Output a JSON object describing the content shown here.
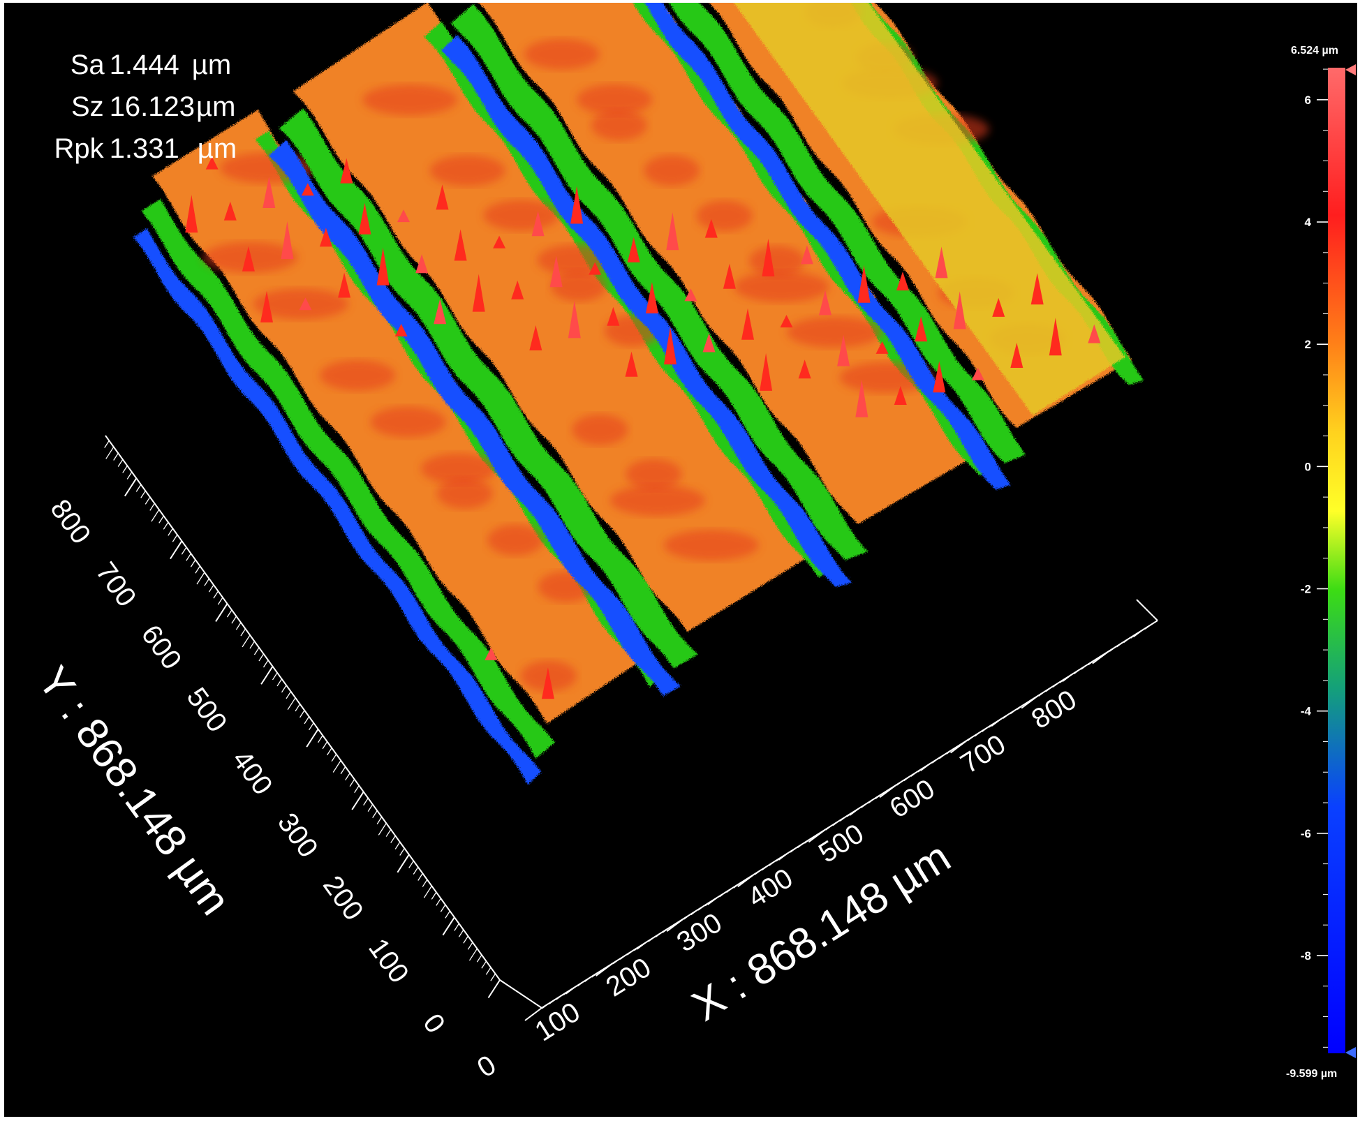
{
  "parameters": [
    {
      "name": "Sa",
      "value": "1.444",
      "unit": "µm"
    },
    {
      "name": "Sz",
      "value": "16.123",
      "unit": "µm"
    },
    {
      "name": "Rpk",
      "value": "1.331",
      "unit": "µm"
    }
  ],
  "colorbar": {
    "max_label": "6.524 µm",
    "min_label": "-9.599 µm",
    "ticks": [
      "6",
      "4",
      "2",
      "0",
      "-2",
      "-4",
      "-6",
      "-8"
    ],
    "tick_values": [
      6,
      4,
      2,
      0,
      -2,
      -4,
      -6,
      -8
    ],
    "max_value": 6.524,
    "min_value": -9.599,
    "gradient_colors": [
      "#ff6060",
      "#ff1414",
      "#ff7a14",
      "#ffd21e",
      "#ffff28",
      "#3cdc14",
      "#14a078",
      "#0a3cff",
      "#0000ff"
    ]
  },
  "x_axis": {
    "title": "X : 868.148 µm",
    "ticks": [
      "0",
      "100",
      "200",
      "300",
      "400",
      "500",
      "600",
      "700",
      "800"
    ]
  },
  "y_axis": {
    "title": "Y : 868.148 µm",
    "ticks": [
      "0",
      "100",
      "200",
      "300",
      "400",
      "500",
      "600",
      "700",
      "800"
    ]
  },
  "surface": {
    "extent_um": 868.148,
    "colors": {
      "blue": "#1450ff",
      "green": "#28c814",
      "yellow": "#e6c828",
      "orange": "#f08228",
      "red": "#e63c1e"
    }
  }
}
